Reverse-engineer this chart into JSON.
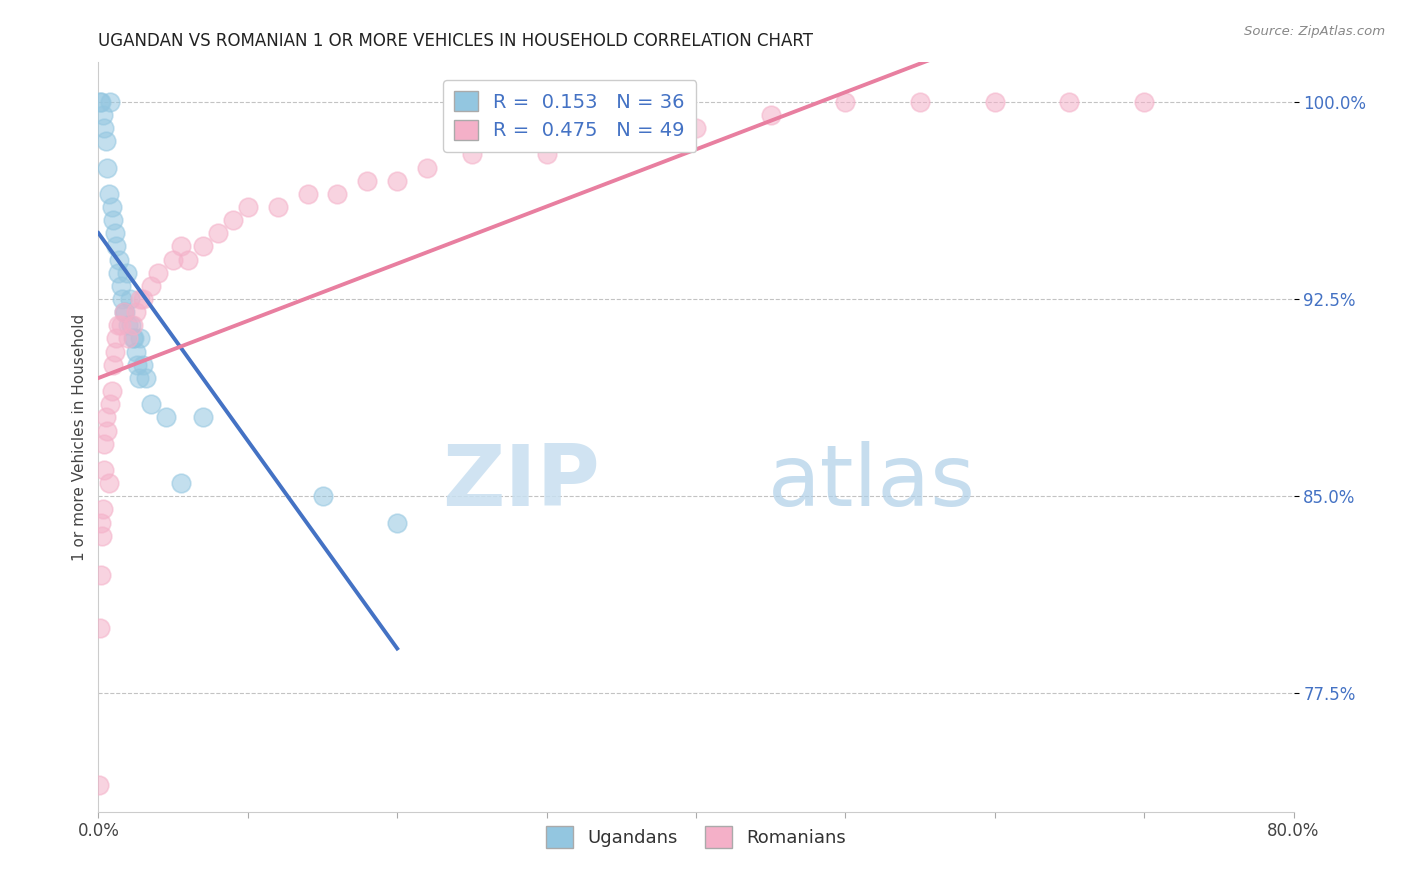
{
  "title": "UGANDAN VS ROMANIAN 1 OR MORE VEHICLES IN HOUSEHOLD CORRELATION CHART",
  "source_text": "Source: ZipAtlas.com",
  "ylabel": "1 or more Vehicles in Household",
  "xlim": [
    0.0,
    80.0
  ],
  "ylim": [
    73.0,
    101.5
  ],
  "yticks": [
    77.5,
    85.0,
    92.5,
    100.0
  ],
  "xticks": [
    0.0,
    10.0,
    20.0,
    30.0,
    40.0,
    50.0,
    60.0,
    70.0,
    80.0
  ],
  "xtick_labels": [
    "0.0%",
    "",
    "",
    "",
    "",
    "",
    "",
    "",
    "80.0%"
  ],
  "ytick_labels": [
    "77.5%",
    "85.0%",
    "92.5%",
    "100.0%"
  ],
  "R_ugandan": 0.153,
  "N_ugandan": 36,
  "R_romanian": 0.475,
  "N_romanian": 49,
  "ugandan_color": "#93c6e0",
  "romanian_color": "#f4b0c8",
  "ugandan_line_color": "#4472c4",
  "romanian_line_color": "#e87fa0",
  "watermark_zip": "ZIP",
  "watermark_atlas": "atlas",
  "ugandan_x": [
    0.1,
    0.2,
    0.3,
    0.4,
    0.5,
    0.6,
    0.7,
    0.8,
    0.9,
    1.0,
    1.1,
    1.2,
    1.3,
    1.4,
    1.5,
    1.6,
    1.7,
    1.8,
    1.9,
    2.0,
    2.1,
    2.2,
    2.3,
    2.4,
    2.5,
    2.6,
    2.7,
    2.8,
    3.0,
    3.2,
    3.5,
    4.5,
    5.5,
    7.0,
    15.0,
    20.0
  ],
  "ugandan_y": [
    100.0,
    100.0,
    99.5,
    99.0,
    98.5,
    97.5,
    96.5,
    100.0,
    96.0,
    95.5,
    95.0,
    94.5,
    93.5,
    94.0,
    93.0,
    92.5,
    92.0,
    92.0,
    93.5,
    91.5,
    92.5,
    91.5,
    91.0,
    91.0,
    90.5,
    90.0,
    89.5,
    91.0,
    90.0,
    89.5,
    88.5,
    88.0,
    85.5,
    88.0,
    85.0,
    84.0
  ],
  "romanian_x": [
    0.05,
    0.1,
    0.15,
    0.2,
    0.25,
    0.3,
    0.35,
    0.4,
    0.5,
    0.6,
    0.7,
    0.8,
    0.9,
    1.0,
    1.1,
    1.2,
    1.3,
    1.5,
    1.7,
    2.0,
    2.3,
    2.5,
    2.8,
    3.0,
    3.5,
    4.0,
    5.0,
    5.5,
    6.0,
    7.0,
    8.0,
    9.0,
    10.0,
    12.0,
    14.0,
    16.0,
    18.0,
    20.0,
    22.0,
    25.0,
    30.0,
    35.0,
    40.0,
    45.0,
    50.0,
    55.0,
    60.0,
    65.0,
    70.0
  ],
  "romanian_y": [
    74.0,
    80.0,
    82.0,
    84.0,
    83.5,
    84.5,
    86.0,
    87.0,
    88.0,
    87.5,
    85.5,
    88.5,
    89.0,
    90.0,
    90.5,
    91.0,
    91.5,
    91.5,
    92.0,
    91.0,
    91.5,
    92.0,
    92.5,
    92.5,
    93.0,
    93.5,
    94.0,
    94.5,
    94.0,
    94.5,
    95.0,
    95.5,
    96.0,
    96.0,
    96.5,
    96.5,
    97.0,
    97.0,
    97.5,
    98.0,
    98.0,
    98.5,
    99.0,
    99.5,
    100.0,
    100.0,
    100.0,
    100.0,
    100.0
  ]
}
